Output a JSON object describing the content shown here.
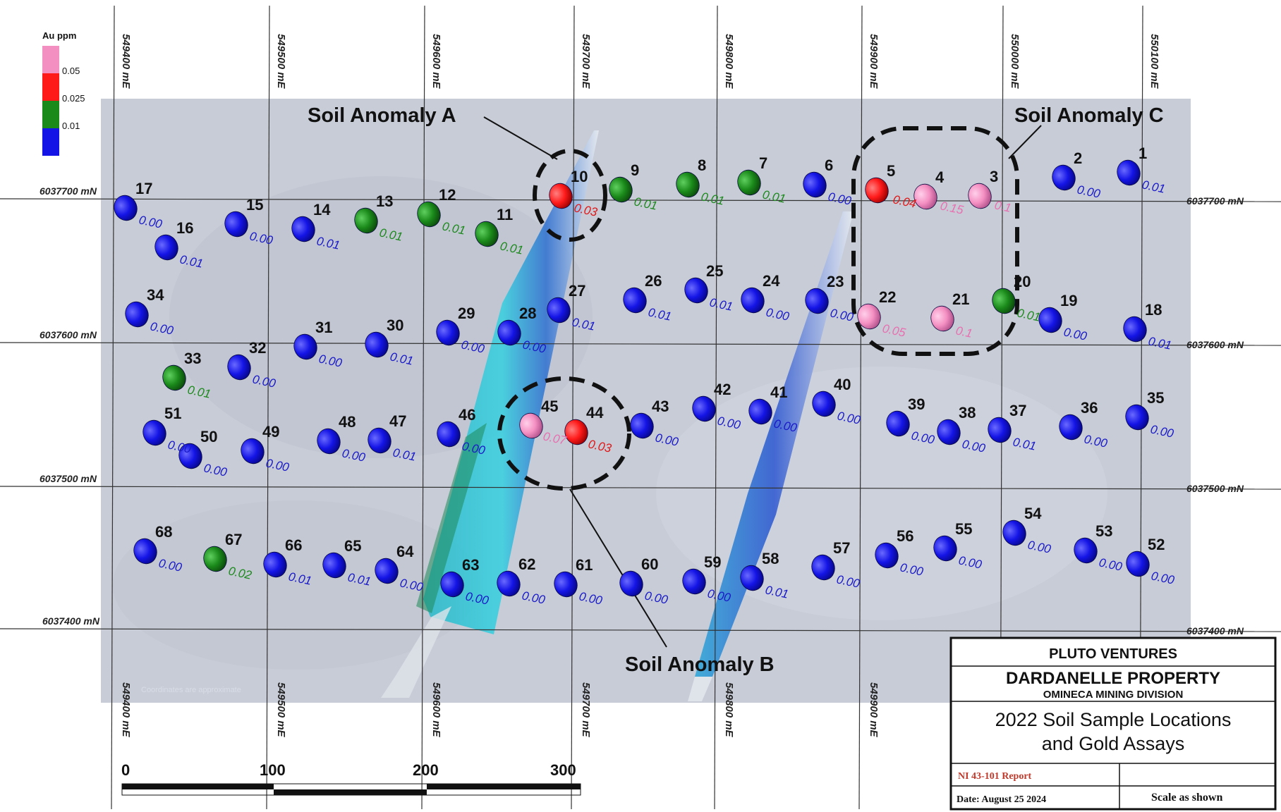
{
  "legend": {
    "title": "Au ppm",
    "classes": [
      {
        "label": "0.05",
        "color": "#f48fc2"
      },
      {
        "label": "0.025",
        "color": "#ff1a1a"
      },
      {
        "label": "0.01",
        "color": "#1a8a1a"
      },
      {
        "label": "",
        "color": "#1414e6"
      }
    ]
  },
  "grid": {
    "eastings_top": [
      "549400 mE",
      "549500 mE",
      "549600 mE",
      "549700 mE",
      "549800 mE",
      "549900 mE",
      "550000 mE",
      "550100 mE"
    ],
    "eastings_bottom": [
      "549400 mE",
      "549500 mE",
      "549600 mE",
      "549700 mE",
      "549800 mE",
      "549900 mE"
    ],
    "northings_left": [
      "6037700 mN",
      "6037600 mN",
      "6037500 mN",
      "6037400 mN"
    ],
    "northings_right": [
      "6037700 mN",
      "6037600 mN",
      "6037500 mN",
      "6037400 mN"
    ]
  },
  "anomalies": [
    {
      "label": "Soil Anomaly A"
    },
    {
      "label": "Soil Anomaly B"
    },
    {
      "label": "Soil Anomaly C"
    }
  ],
  "samples": [
    {
      "id": "1",
      "value": "0.01",
      "class": "blue"
    },
    {
      "id": "2",
      "value": "0.00",
      "class": "blue"
    },
    {
      "id": "3",
      "value": "0.1",
      "class": "pink"
    },
    {
      "id": "4",
      "value": "0.15",
      "class": "pink"
    },
    {
      "id": "5",
      "value": "0.04",
      "class": "red"
    },
    {
      "id": "6",
      "value": "0.00",
      "class": "blue"
    },
    {
      "id": "7",
      "value": "0.01",
      "class": "green"
    },
    {
      "id": "8",
      "value": "0.01",
      "class": "green"
    },
    {
      "id": "9",
      "value": "0.01",
      "class": "green"
    },
    {
      "id": "10",
      "value": "0.03",
      "class": "red"
    },
    {
      "id": "11",
      "value": "0.01",
      "class": "green"
    },
    {
      "id": "12",
      "value": "0.01",
      "class": "green"
    },
    {
      "id": "13",
      "value": "0.01",
      "class": "green"
    },
    {
      "id": "14",
      "value": "0.01",
      "class": "blue"
    },
    {
      "id": "15",
      "value": "0.00",
      "class": "blue"
    },
    {
      "id": "16",
      "value": "0.01",
      "class": "blue"
    },
    {
      "id": "17",
      "value": "0.00",
      "class": "blue"
    },
    {
      "id": "18",
      "value": "0.01",
      "class": "blue"
    },
    {
      "id": "19",
      "value": "0.00",
      "class": "blue"
    },
    {
      "id": "20",
      "value": "0.01",
      "class": "green"
    },
    {
      "id": "21",
      "value": "0.1",
      "class": "pink"
    },
    {
      "id": "22",
      "value": "0.05",
      "class": "pink"
    },
    {
      "id": "23",
      "value": "0.00",
      "class": "blue"
    },
    {
      "id": "24",
      "value": "0.00",
      "class": "blue"
    },
    {
      "id": "25",
      "value": "0.01",
      "class": "blue"
    },
    {
      "id": "26",
      "value": "0.01",
      "class": "blue"
    },
    {
      "id": "27",
      "value": "0.01",
      "class": "blue"
    },
    {
      "id": "28",
      "value": "0.00",
      "class": "blue"
    },
    {
      "id": "29",
      "value": "0.00",
      "class": "blue"
    },
    {
      "id": "30",
      "value": "0.01",
      "class": "blue"
    },
    {
      "id": "31",
      "value": "0.00",
      "class": "blue"
    },
    {
      "id": "32",
      "value": "0.00",
      "class": "blue"
    },
    {
      "id": "33",
      "value": "0.01",
      "class": "green"
    },
    {
      "id": "34",
      "value": "0.00",
      "class": "blue"
    },
    {
      "id": "35",
      "value": "0.00",
      "class": "blue"
    },
    {
      "id": "36",
      "value": "0.00",
      "class": "blue"
    },
    {
      "id": "37",
      "value": "0.01",
      "class": "blue"
    },
    {
      "id": "38",
      "value": "0.00",
      "class": "blue"
    },
    {
      "id": "39",
      "value": "0.00",
      "class": "blue"
    },
    {
      "id": "40",
      "value": "0.00",
      "class": "blue"
    },
    {
      "id": "41",
      "value": "0.00",
      "class": "blue"
    },
    {
      "id": "42",
      "value": "0.00",
      "class": "blue"
    },
    {
      "id": "43",
      "value": "0.00",
      "class": "blue"
    },
    {
      "id": "44",
      "value": "0.03",
      "class": "red"
    },
    {
      "id": "45",
      "value": "0.07",
      "class": "pink"
    },
    {
      "id": "46",
      "value": "0.00",
      "class": "blue"
    },
    {
      "id": "47",
      "value": "0.01",
      "class": "blue"
    },
    {
      "id": "48",
      "value": "0.00",
      "class": "blue"
    },
    {
      "id": "49",
      "value": "0.00",
      "class": "blue"
    },
    {
      "id": "50",
      "value": "0.00",
      "class": "blue"
    },
    {
      "id": "51",
      "value": "0.00",
      "class": "blue"
    },
    {
      "id": "52",
      "value": "0.00",
      "class": "blue"
    },
    {
      "id": "53",
      "value": "0.00",
      "class": "blue"
    },
    {
      "id": "54",
      "value": "0.00",
      "class": "blue"
    },
    {
      "id": "55",
      "value": "0.00",
      "class": "blue"
    },
    {
      "id": "56",
      "value": "0.00",
      "class": "blue"
    },
    {
      "id": "57",
      "value": "0.00",
      "class": "blue"
    },
    {
      "id": "58",
      "value": "0.01",
      "class": "blue"
    },
    {
      "id": "59",
      "value": "0.00",
      "class": "blue"
    },
    {
      "id": "60",
      "value": "0.00",
      "class": "blue"
    },
    {
      "id": "61",
      "value": "0.00",
      "class": "blue"
    },
    {
      "id": "62",
      "value": "0.00",
      "class": "blue"
    },
    {
      "id": "63",
      "value": "0.00",
      "class": "blue"
    },
    {
      "id": "64",
      "value": "0.00",
      "class": "blue"
    },
    {
      "id": "65",
      "value": "0.01",
      "class": "blue"
    },
    {
      "id": "66",
      "value": "0.01",
      "class": "blue"
    },
    {
      "id": "67",
      "value": "0.02",
      "class": "green"
    },
    {
      "id": "68",
      "value": "0.00",
      "class": "blue"
    }
  ],
  "scale_bar": {
    "ticks": [
      "0",
      "100",
      "200",
      "300"
    ]
  },
  "credit": "Coordinates are approximate",
  "title_block": {
    "company": "PLUTO VENTURES",
    "property": "DARDANELLE PROPERTY",
    "division": "OMINECA MINING DIVISION",
    "title_line1": "2022 Soil Sample Locations",
    "title_line2": "and Gold Assays",
    "report": "NI 43-101 Report",
    "date": "Date:  August 25 2024",
    "scale": "Scale  as shown"
  },
  "colors": {
    "blue": "#1414e6",
    "green": "#1a8a1a",
    "red": "#ff1a1a",
    "pink": "#f48fc2",
    "blue_text": "#1a1ac8",
    "green_text": "#1e8a1e",
    "red_text": "#e01818",
    "pink_text": "#e870b0"
  }
}
